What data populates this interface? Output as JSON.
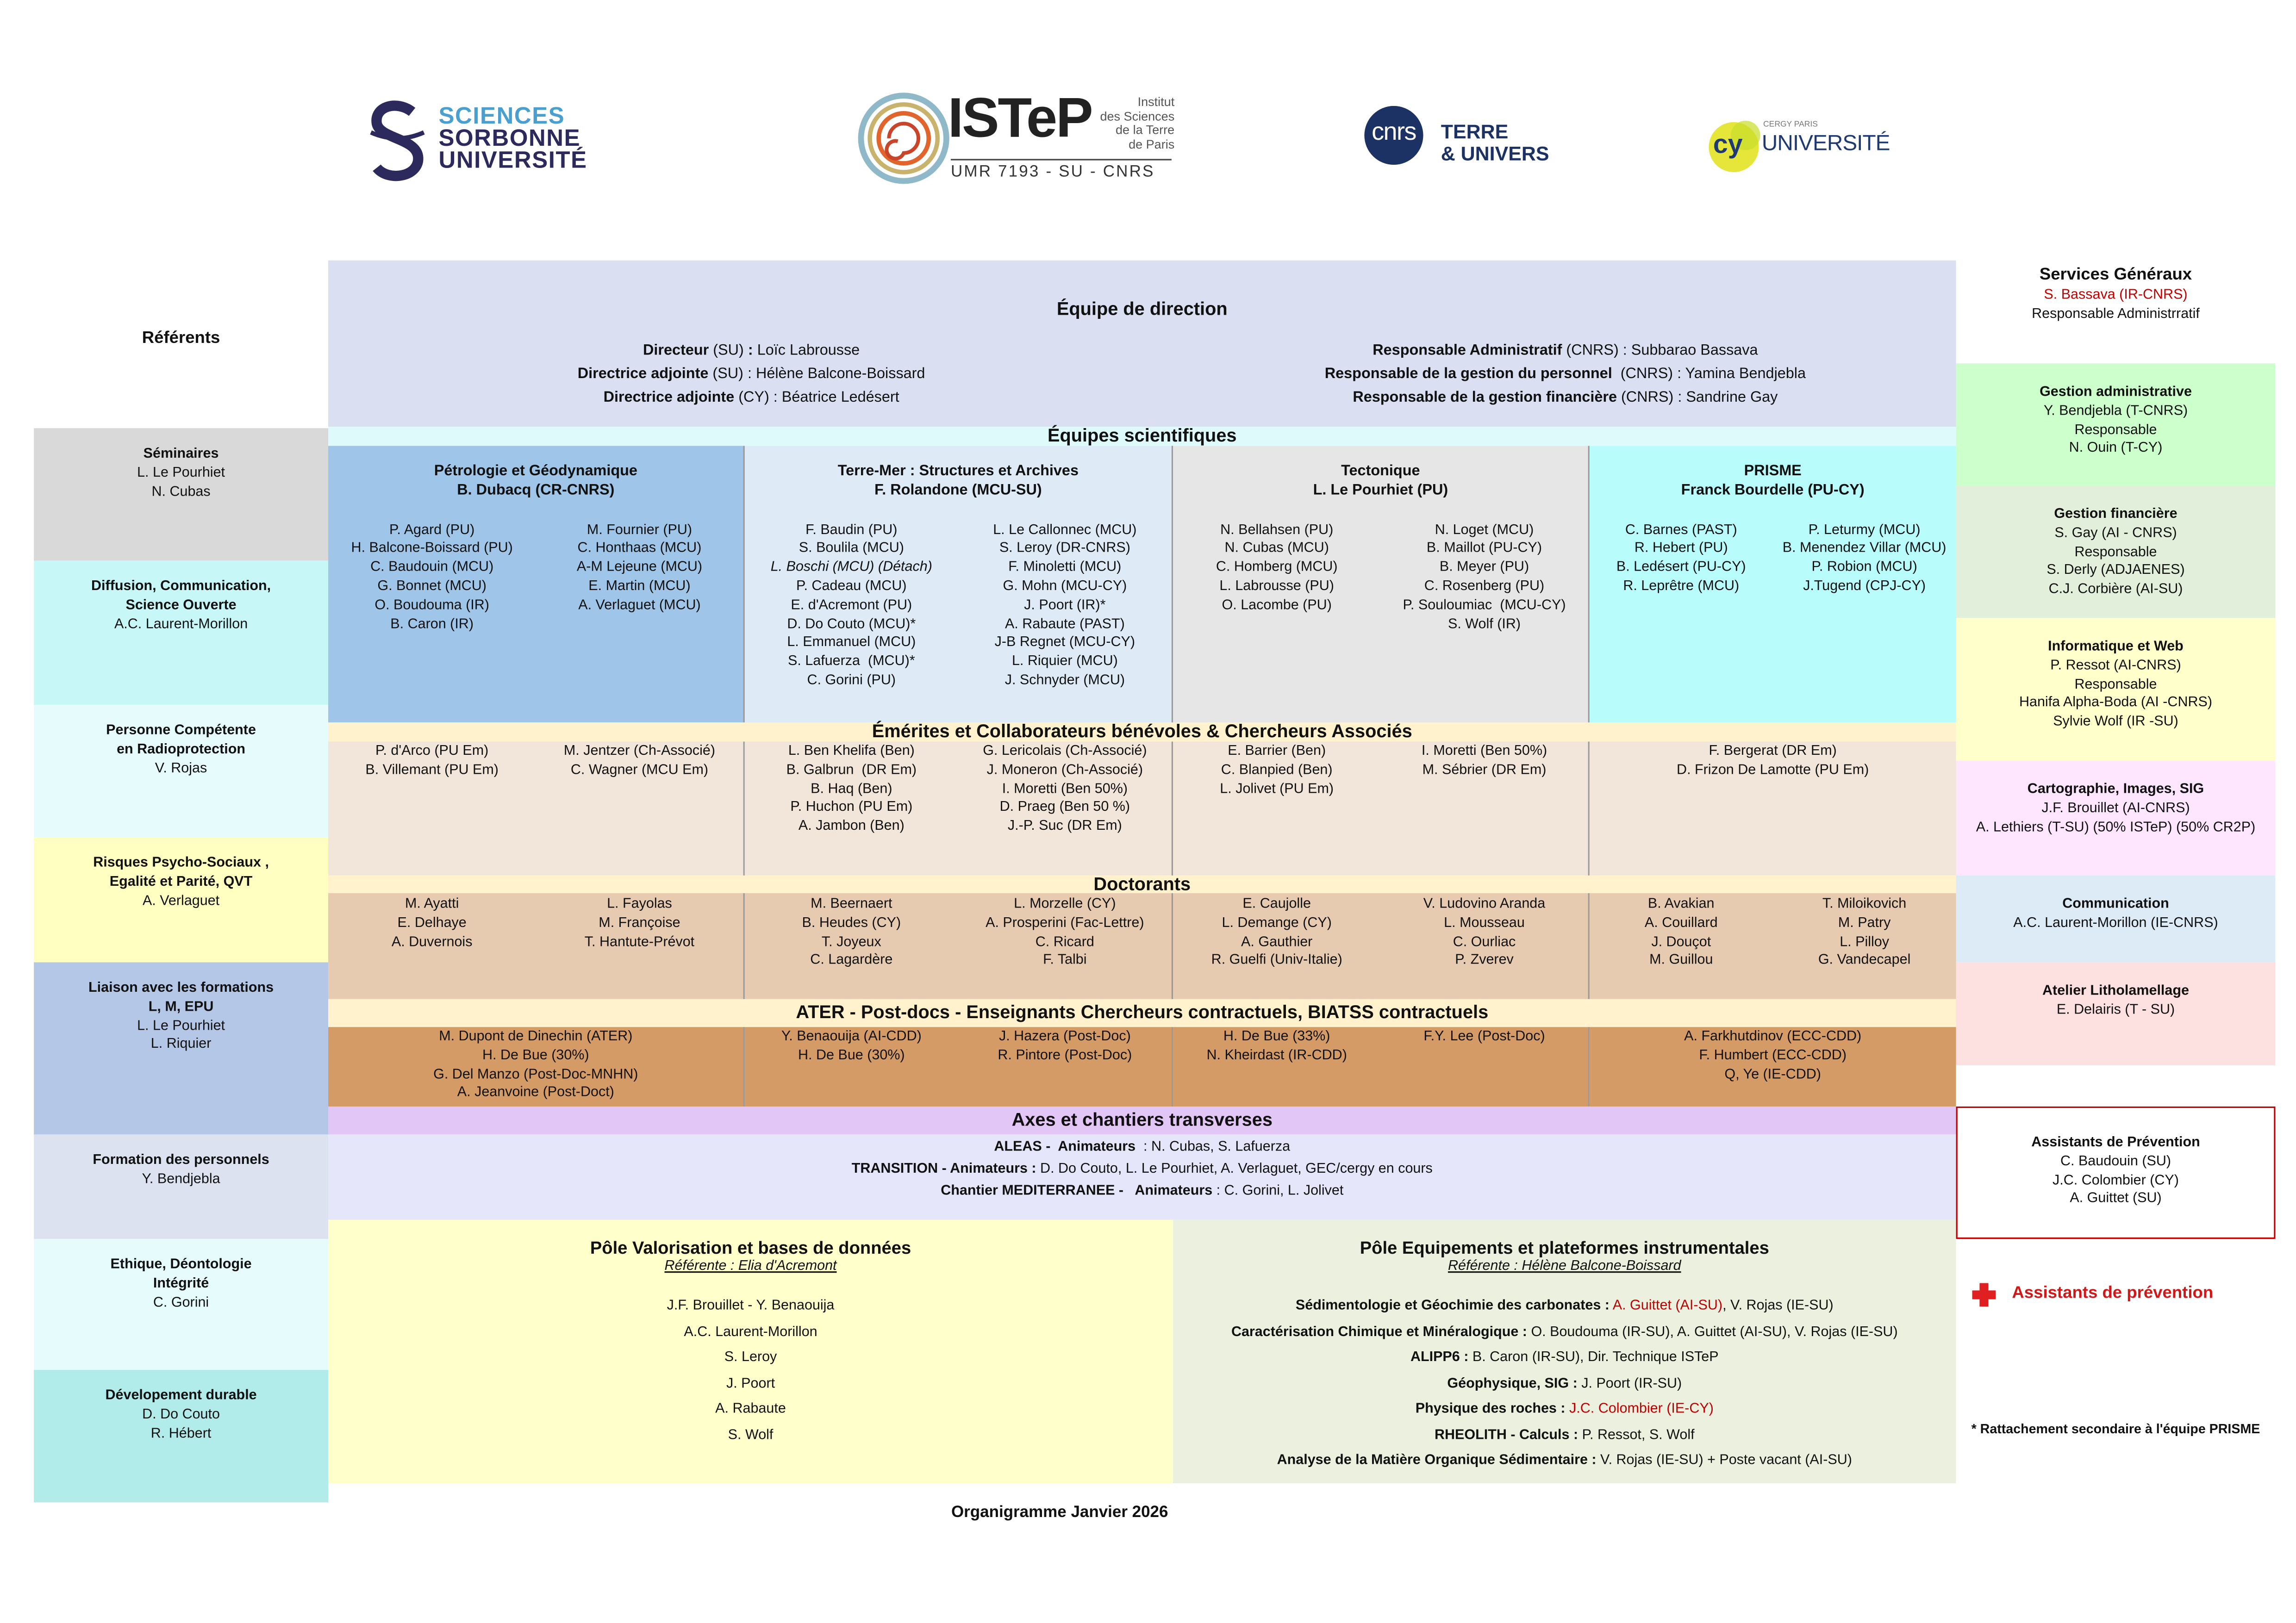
{
  "logos": {
    "sorbonne": [
      "SCIENCES",
      "SORBONNE",
      "UNIVERSITÉ"
    ],
    "istep": {
      "name": "ISTeP",
      "institute": [
        "Institut",
        "des Sciences",
        "de la Terre",
        "de Paris"
      ],
      "umr": "UMR 7193 - SU - CNRS"
    },
    "cnrs": {
      "mark": "cnrs",
      "text": [
        "TERRE",
        "& UNIVERS"
      ]
    },
    "cy": {
      "mark": "cy",
      "small": "CERGY PARIS",
      "text": "UNIVERSITÉ"
    }
  },
  "referents": {
    "title": "Référents",
    "boxes": [
      [
        {
          "b": "Séminaires"
        },
        "L. Le Pourhiet",
        "N. Cubas"
      ],
      [
        {
          "b": "Diffusion, Communication,"
        },
        {
          "b": "Science Ouverte"
        },
        "A.C. Laurent-Morillon"
      ],
      [
        {
          "b": "Personne Compétente"
        },
        {
          "b": "en Radioprotection"
        },
        "V. Rojas"
      ],
      [
        {
          "b": "Risques Psycho-Sociaux ,"
        },
        {
          "b": "Egalité et Parité, QVT"
        },
        "A. Verlaguet"
      ],
      [
        {
          "b": "Liaison avec les formations"
        },
        {
          "b": "L, M, EPU"
        },
        "L. Le Pourhiet",
        "L. Riquier"
      ],
      [
        {
          "b": "Formation des personnels"
        },
        "Y. Bendjebla"
      ],
      [
        {
          "b": "Ethique, Déontologie"
        },
        {
          "b": "Intégrité"
        },
        "C. Gorini"
      ],
      [
        {
          "b": "Dévelopement durable"
        },
        "D. Do Couto",
        "R. Hébert"
      ]
    ]
  },
  "services": {
    "boxes": [
      [
        {
          "h": "Services Généraux"
        },
        {
          "r": "S. Bassava (IR-CNRS)"
        },
        "Responsable Administrratif"
      ],
      [
        {
          "b": "Gestion administrative"
        },
        "Y. Bendjebla (T-CNRS)",
        "Responsable",
        "N. Ouin (T-CY)"
      ],
      [
        {
          "b": "Gestion financière"
        },
        "S. Gay (AI - CNRS)",
        "Responsable",
        "S. Derly (ADJAENES)",
        "C.J. Corbière (AI-SU)"
      ],
      [
        {
          "b": "Informatique et Web"
        },
        "P. Ressot (AI-CNRS)",
        "Responsable",
        "Hanifa Alpha-Boda (AI -CNRS)",
        "Sylvie Wolf (IR -SU)"
      ],
      [
        {
          "b": "Cartographie, Images, SIG"
        },
        "J.F. Brouillet (AI-CNRS)",
        "A. Lethiers (T-SU) (50% ISTeP) (50% CR2P)"
      ],
      [
        {
          "b": "Communication"
        },
        "A.C. Laurent-Morillon (IE-CNRS)"
      ],
      [
        {
          "b": "Atelier Litholamellage"
        },
        "E. Delairis (T - SU)"
      ],
      [
        {
          "b": "Assistants de Prévention"
        },
        "C. Baudouin (SU)",
        "J.C. Colombier (CY)",
        "A. Guittet (SU)"
      ]
    ],
    "prevention_legend": "Assistants de prévention",
    "footnote": "* Rattachement secondaire à l'équipe PRISME"
  },
  "direction": {
    "title": "Équipe de direction",
    "left": [
      [
        {
          "b": "Directeur"
        },
        {
          "t": " (SU) "
        },
        {
          "b": ":"
        },
        {
          "t": " Loïc Labrousse"
        }
      ],
      [
        {
          "b": "Directrice adjointe"
        },
        {
          "t": " (SU) : Hélène Balcone-Boissard"
        }
      ],
      [
        {
          "b": "Directrice adjointe"
        },
        {
          "t": " (CY) : Béatrice Ledésert"
        }
      ]
    ],
    "right": [
      [
        {
          "b": "Responsable Administratif"
        },
        {
          "t": " (CNRS) : Subbarao Bassava"
        }
      ],
      [
        {
          "b": "Responsable de la gestion du personnel"
        },
        {
          "t": "  (CNRS) : Yamina Bendjebla"
        }
      ],
      [
        {
          "b": "Responsable de la gestion financière"
        },
        {
          "t": " (CNRS) : Sandrine Gay"
        }
      ]
    ]
  },
  "scientific_teams": {
    "title": "Équipes scientifiques",
    "teams": [
      {
        "title": [
          {
            "b": "Pétrologie et Géodynamique"
          },
          {
            "b": "B. Dubacq (CR-CNRS)"
          }
        ],
        "left": [
          "P. Agard (PU)",
          "H. Balcone-Boissard (PU)",
          "C. Baudouin (MCU)",
          "G. Bonnet (MCU)",
          "O. Boudouma (IR)",
          "B. Caron (IR)"
        ],
        "right": [
          "M. Fournier (PU)",
          "C. Honthaas (MCU)",
          "A-M Lejeune (MCU)",
          "E. Martin (MCU)",
          "A. Verlaguet (MCU)"
        ]
      },
      {
        "title": [
          {
            "b": "Terre-Mer : Structures et Archives"
          },
          {
            "b": "F. Rolandone (MCU-SU)"
          }
        ],
        "left": [
          "F. Baudin (PU)",
          "S. Boulila (MCU)",
          {
            "i": "L. Boschi (MCU) (Détach)"
          },
          "P. Cadeau (MCU)",
          "E. d'Acremont (PU)",
          "D. Do Couto (MCU)*",
          "L. Emmanuel (MCU)",
          "S. Lafuerza  (MCU)*",
          "C. Gorini (PU)"
        ],
        "right": [
          "L. Le Callonnec (MCU)",
          "S. Leroy (DR-CNRS)",
          "F. Minoletti (MCU)",
          "G. Mohn (MCU-CY)",
          "J. Poort (IR)*",
          "A. Rabaute (PAST)",
          "J-B Regnet (MCU-CY)",
          "L. Riquier (MCU)",
          "J. Schnyder (MCU)"
        ]
      },
      {
        "title": [
          {
            "b": "Tectonique"
          },
          {
            "b": "L. Le Pourhiet (PU)"
          }
        ],
        "left": [
          "N. Bellahsen (PU)",
          "N. Cubas (MCU)",
          "C. Homberg (MCU)",
          "L. Labrousse (PU)",
          "O. Lacombe (PU)"
        ],
        "right": [
          "N. Loget (MCU)",
          "B. Maillot (PU-CY)",
          "B. Meyer (PU)",
          "C. Rosenberg (PU)",
          "P. Souloumiac  (MCU-CY)",
          "S. Wolf (IR)"
        ]
      },
      {
        "title": [
          {
            "b": "PRISME"
          },
          {
            "b": "Franck Bourdelle (PU-CY)"
          }
        ],
        "left": [
          "C. Barnes (PAST)",
          "R. Hebert (PU)",
          "B. Ledésert (PU-CY)",
          "R. Leprêtre (MCU)"
        ],
        "right": [
          "P. Leturmy (MCU)",
          "B. Menendez Villar (MCU)",
          "P. Robion (MCU)",
          "J.Tugend (CPJ-CY)"
        ]
      }
    ]
  },
  "emeritus": {
    "title": "Émérites et Collaborateurs bénévoles & Chercheurs Associés",
    "cells": [
      {
        "left": [
          "P. d'Arco (PU Em)",
          "B. Villemant (PU Em)"
        ],
        "right": [
          "M. Jentzer (Ch-Associé)",
          "C. Wagner (MCU Em)"
        ]
      },
      {
        "left": [
          "L. Ben Khelifa (Ben)",
          "B. Galbrun  (DR Em)",
          "B. Haq (Ben)",
          "P. Huchon (PU Em)",
          "A. Jambon (Ben)"
        ],
        "right": [
          "G. Lericolais (Ch-Associé)",
          "J. Moneron (Ch-Associé)",
          "I. Moretti (Ben 50%)",
          "D. Praeg (Ben 50 %)",
          "J.-P. Suc (DR Em)"
        ]
      },
      {
        "left": [
          "E. Barrier (Ben)",
          "C. Blanpied (Ben)",
          "L. Jolivet (PU Em)"
        ],
        "right": [
          "I. Moretti (Ben 50%)",
          "M. Sébrier (DR Em)"
        ]
      },
      {
        "lines": [
          "F. Bergerat (DR Em)",
          "D. Frizon De Lamotte (PU Em)"
        ]
      }
    ]
  },
  "doctoral": {
    "title": "Doctorants",
    "cells": [
      {
        "left": [
          "M. Ayatti",
          "E. Delhaye",
          "A. Duvernois"
        ],
        "right": [
          "L. Fayolas",
          "M. Françoise",
          "T. Hantute-Prévot"
        ]
      },
      {
        "left": [
          "M. Beernaert",
          "B. Heudes (CY)",
          "T. Joyeux",
          "C. Lagardère"
        ],
        "right": [
          "L. Morzelle (CY)",
          "A. Prosperini (Fac-Lettre)",
          "C. Ricard",
          "F. Talbi"
        ]
      },
      {
        "left": [
          "E. Caujolle",
          "L. Demange (CY)",
          "A. Gauthier",
          "R. Guelfi (Univ-Italie)"
        ],
        "right": [
          "V. Ludovino Aranda",
          "L. Mousseau",
          "C. Ourliac",
          "P. Zverev"
        ]
      },
      {
        "left": [
          "B. Avakian",
          "A. Couillard",
          "J. Douçot",
          "M. Guillou"
        ],
        "right": [
          "T. Miloikovich",
          "M. Patry",
          "L. Pilloy",
          "G. Vandecapel"
        ]
      }
    ]
  },
  "ater": {
    "title": "ATER - Post-docs - Enseignants Chercheurs contractuels, BIATSS contractuels",
    "cells": [
      {
        "lines": [
          "M. Dupont de Dinechin (ATER)",
          "H. De Bue (30%)",
          "G. Del Manzo (Post-Doc-MNHN)",
          "A. Jeanvoine (Post-Doct)"
        ]
      },
      {
        "left": [
          "Y. Benaouija (AI-CDD)",
          "H. De Bue (30%)"
        ],
        "right": [
          "J. Hazera (Post-Doc)",
          "R. Pintore (Post-Doc)"
        ]
      },
      {
        "left": [
          "H. De Bue (33%)",
          "N. Kheirdast (IR-CDD)"
        ],
        "right": [
          "F.Y. Lee (Post-Doc)"
        ]
      },
      {
        "lines": [
          "A. Farkhutdinov (ECC-CDD)",
          "F. Humbert (ECC-CDD)",
          "Q, Ye (IE-CDD)"
        ]
      }
    ]
  },
  "axes": {
    "title": "Axes et chantiers transverses",
    "lines": [
      [
        {
          "b": "ALEAS -  Animateurs"
        },
        {
          "t": "  : N. Cubas, S. Lafuerza"
        }
      ],
      [
        {
          "b": "TRANSITION - Animateurs :"
        },
        {
          "t": " D. Do Couto, L. Le Pourhiet, A. Verlaguet, GEC/cergy en cours"
        }
      ],
      [
        {
          "b": "Chantier MEDITERRANEE -   Animateurs"
        },
        {
          "t": " : C. Gorini, L. Jolivet"
        }
      ]
    ]
  },
  "poles": [
    {
      "title": "Pôle Valorisation et bases de données",
      "referent": "Référente : Elia d'Acremont",
      "lines": [
        "J.F. Brouillet - Y. Benaouija",
        "A.C. Laurent-Morillon",
        "S. Leroy",
        "J. Poort",
        "A. Rabaute",
        "S. Wolf"
      ]
    },
    {
      "title": "Pôle Equipements et plateformes instrumentales",
      "referent": "Référente : Hélène Balcone-Boissard",
      "lines": [
        [
          {
            "b": "Sédimentologie et Géochimie des carbonates :"
          },
          {
            "r": " A. Guittet (AI-SU)"
          },
          {
            "t": ", V. Rojas (IE-SU)"
          }
        ],
        [
          {
            "b": "Caractérisation Chimique et Minéralogique :"
          },
          {
            "t": " O. Boudouma (IR-SU), A. Guittet (AI-SU), V. Rojas (IE-SU)"
          }
        ],
        [
          {
            "b": "ALIPP6 :"
          },
          {
            "t": " B. Caron (IR-SU), Dir. Technique ISTeP"
          }
        ],
        [
          {
            "b": "Géophysique, SIG :"
          },
          {
            "t": " J. Poort (IR-SU)"
          }
        ],
        [
          {
            "b": "Physique des roches :"
          },
          {
            "r": " J.C. Colombier (IE-CY)"
          }
        ],
        [
          {
            "b": "RHEOLITH - Calculs :"
          },
          {
            "t": " P. Ressot, S. Wolf"
          }
        ],
        [
          {
            "b": "Analyse de la Matière Organique Sédimentaire :"
          },
          {
            "t": " V. Rojas (IE-SU) + Poste vacant (AI-SU)"
          }
        ]
      ]
    }
  ],
  "footer": "Organigramme Janvier 2026"
}
